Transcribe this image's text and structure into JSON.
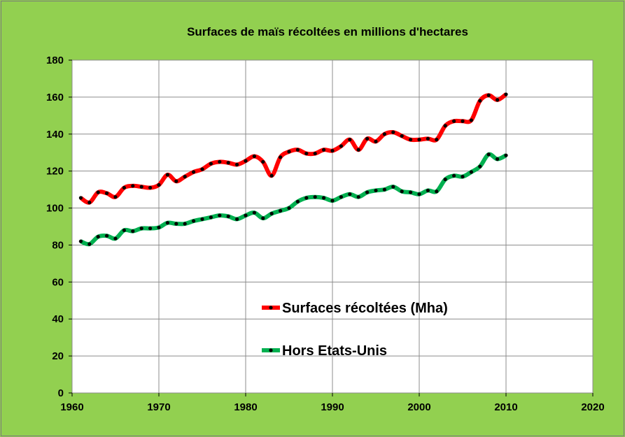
{
  "chart_data": {
    "type": "line",
    "title": "Surfaces de maïs récoltées en millions d'hectares",
    "xlabel": "",
    "ylabel": "",
    "xlim": [
      1960,
      2020
    ],
    "ylim": [
      0,
      180
    ],
    "xticks": [
      1960,
      1970,
      1980,
      1990,
      2000,
      2010,
      2020
    ],
    "yticks": [
      0,
      20,
      40,
      60,
      80,
      100,
      120,
      140,
      160,
      180
    ],
    "grid": true,
    "legend_position": "center-bottom",
    "x": [
      1961,
      1962,
      1963,
      1964,
      1965,
      1966,
      1967,
      1968,
      1969,
      1970,
      1971,
      1972,
      1973,
      1974,
      1975,
      1976,
      1977,
      1978,
      1979,
      1980,
      1981,
      1982,
      1983,
      1984,
      1985,
      1986,
      1987,
      1988,
      1989,
      1990,
      1991,
      1992,
      1993,
      1994,
      1995,
      1996,
      1997,
      1998,
      1999,
      2000,
      2001,
      2002,
      2003,
      2004,
      2005,
      2006,
      2007,
      2008,
      2009,
      2010
    ],
    "series": [
      {
        "name": "Surfaces récoltées (Mha)",
        "color": "#ff0000",
        "values": [
          105.5,
          103,
          108.5,
          108,
          106,
          111,
          112,
          111.5,
          111,
          112.5,
          118,
          114.5,
          117,
          119.5,
          121,
          124,
          125,
          124.5,
          123.5,
          125.5,
          128,
          125,
          117.5,
          127.5,
          130.5,
          131.5,
          129.5,
          129.5,
          131.5,
          131,
          133.5,
          137,
          131.5,
          137.5,
          136,
          140,
          141,
          139,
          137,
          137,
          137.5,
          137,
          144.5,
          147,
          147,
          147.5,
          158,
          161,
          158.5,
          161.5
        ]
      },
      {
        "name": "Hors Etats-Unis",
        "color": "#00b050",
        "values": [
          82,
          80.5,
          84.5,
          85,
          83.5,
          88,
          87.5,
          89,
          89,
          89.5,
          92,
          91.5,
          91.5,
          93,
          94,
          95,
          96,
          95.5,
          94,
          96,
          97.5,
          94.5,
          97,
          98.5,
          100,
          103.5,
          105.5,
          106,
          105.5,
          104,
          106,
          107.5,
          106,
          108.5,
          109.5,
          110,
          111.5,
          109,
          108.5,
          107.5,
          109.5,
          109,
          115.5,
          117.5,
          117,
          119.5,
          122.5,
          129,
          126.5,
          128.5
        ]
      }
    ]
  }
}
